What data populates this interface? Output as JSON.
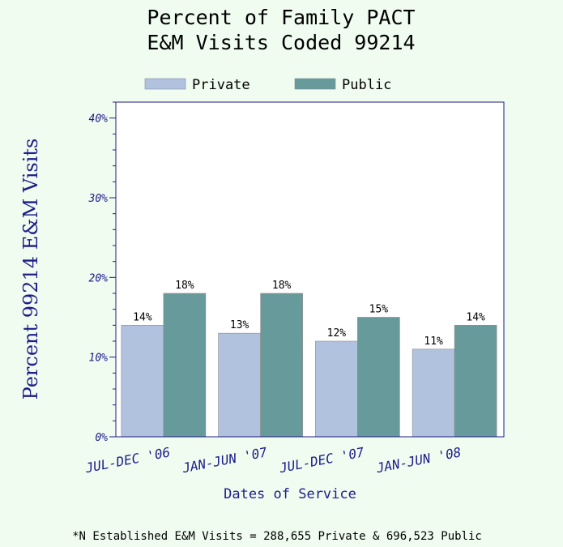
{
  "chart_data": {
    "type": "bar",
    "title": [
      "Percent of Family PACT",
      "E&M Visits Coded 99214"
    ],
    "xlabel": "Dates of Service",
    "ylabel": "Percent 99214 E&M Visits",
    "categories": [
      "JUL-DEC '06",
      "JAN-JUN '07",
      "JUL-DEC '07",
      "JAN-JUN '08"
    ],
    "series": [
      {
        "name": "Private",
        "values": [
          14,
          13,
          12,
          11
        ],
        "value_labels": [
          "14%",
          "13%",
          "12%",
          "11%"
        ],
        "color": "#b1c2df"
      },
      {
        "name": "Public",
        "values": [
          18,
          18,
          15,
          14
        ],
        "value_labels": [
          "18%",
          "18%",
          "15%",
          "14%"
        ],
        "color": "#679a9a"
      }
    ],
    "ylim": [
      0,
      42
    ],
    "yticks": [
      0,
      10,
      20,
      30,
      40
    ],
    "ytick_labels": [
      "0%",
      "10%",
      "20%",
      "30%",
      "40%"
    ],
    "legend_position": "top-center",
    "grid": false,
    "footnote": "*N Established E&M Visits = 288,655 Private & 696,523 Public"
  },
  "colors": {
    "background": "#f0fcf0",
    "plot_background": "#ffffff",
    "axis": "#1c1c8a"
  }
}
